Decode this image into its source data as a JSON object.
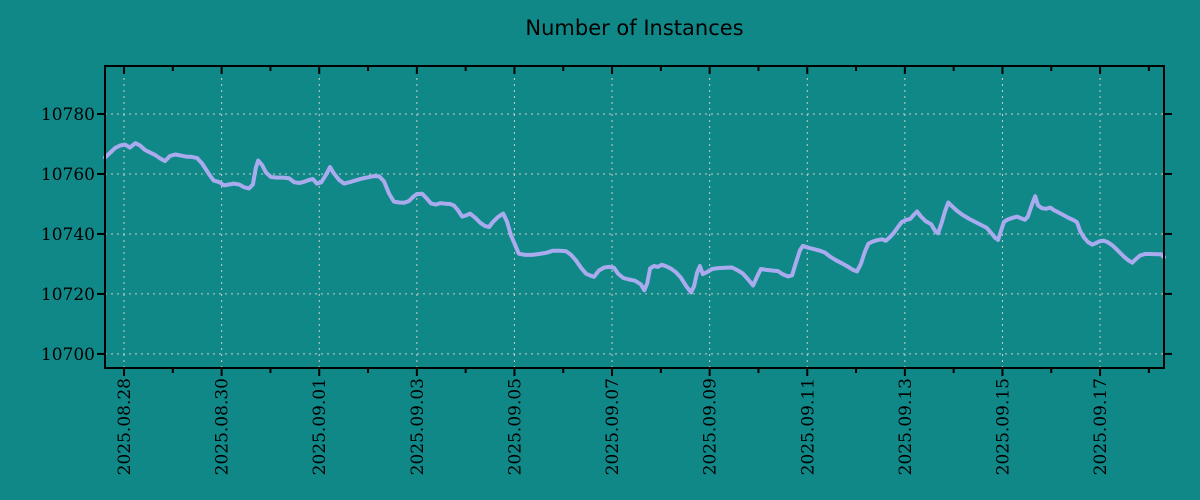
{
  "colors": {
    "background": "#108888",
    "line": "#aaaaee",
    "grid": "#cccccc",
    "axis": "#000000",
    "text": "#000000"
  },
  "chart_data": {
    "type": "line",
    "title": "Number of Instances",
    "xlabel": "",
    "ylabel": "",
    "grid": "dashed",
    "legend": "none",
    "x_tick_labels": [
      "2025.08.28",
      "2025.08.30",
      "2025.09.01",
      "2025.09.03",
      "2025.09.05",
      "2025.09.07",
      "2025.09.09",
      "2025.09.11",
      "2025.09.13",
      "2025.09.15",
      "2025.09.17"
    ],
    "x_tick_days": [
      0,
      2,
      4,
      6,
      8,
      10,
      12,
      14,
      16,
      18,
      20
    ],
    "x_minor_tick_days": [
      1,
      3,
      5,
      7,
      9,
      11,
      13,
      15,
      17,
      19,
      21
    ],
    "y_ticks": [
      10700,
      10720,
      10740,
      10760,
      10780
    ],
    "y_tick_labels": [
      "10700",
      "10720",
      "10740",
      "10760",
      "10780"
    ],
    "xlim_days": [
      -0.39,
      21.31
    ],
    "ylim": [
      10695.3,
      10796.0
    ],
    "x_days": [
      -0.39,
      -0.29,
      -0.18,
      -0.08,
      0.02,
      0.12,
      0.23,
      0.33,
      0.43,
      0.53,
      0.64,
      0.74,
      0.84,
      0.94,
      1.05,
      1.15,
      1.27,
      1.39,
      1.5,
      1.6,
      1.68,
      1.76,
      1.84,
      1.95,
      2.05,
      2.15,
      2.25,
      2.36,
      2.46,
      2.56,
      2.64,
      2.7,
      2.75,
      2.83,
      2.91,
      3.01,
      3.14,
      3.26,
      3.38,
      3.48,
      3.59,
      3.69,
      3.79,
      3.87,
      3.95,
      4.04,
      4.14,
      4.22,
      4.3,
      4.41,
      4.51,
      4.63,
      4.75,
      4.88,
      5.0,
      5.12,
      5.23,
      5.33,
      5.43,
      5.53,
      5.64,
      5.74,
      5.84,
      5.92,
      6.0,
      6.11,
      6.21,
      6.29,
      6.39,
      6.48,
      6.58,
      6.68,
      6.76,
      6.84,
      6.93,
      7.01,
      7.09,
      7.19,
      7.3,
      7.4,
      7.48,
      7.56,
      7.66,
      7.77,
      7.85,
      7.93,
      8.01,
      8.09,
      8.22,
      8.36,
      8.5,
      8.65,
      8.79,
      8.93,
      9.06,
      9.16,
      9.26,
      9.37,
      9.47,
      9.57,
      9.63,
      9.73,
      9.84,
      9.94,
      10.04,
      10.12,
      10.23,
      10.35,
      10.47,
      10.59,
      10.66,
      10.72,
      10.78,
      10.86,
      10.94,
      11.02,
      11.11,
      11.21,
      11.31,
      11.41,
      11.52,
      11.62,
      11.68,
      11.74,
      11.8,
      11.86,
      11.95,
      12.05,
      12.17,
      12.32,
      12.46,
      12.58,
      12.68,
      12.79,
      12.89,
      12.97,
      13.05,
      13.16,
      13.28,
      13.4,
      13.5,
      13.61,
      13.69,
      13.77,
      13.85,
      13.91,
      14.02,
      14.14,
      14.26,
      14.36,
      14.47,
      14.59,
      14.71,
      14.84,
      14.94,
      15.02,
      15.1,
      15.18,
      15.25,
      15.33,
      15.43,
      15.53,
      15.61,
      15.7,
      15.78,
      15.86,
      15.94,
      16.02,
      16.11,
      16.19,
      16.25,
      16.33,
      16.43,
      16.54,
      16.62,
      16.68,
      16.76,
      16.82,
      16.89,
      16.97,
      17.07,
      17.19,
      17.32,
      17.44,
      17.56,
      17.68,
      17.77,
      17.85,
      17.91,
      17.97,
      18.03,
      18.11,
      18.22,
      18.3,
      18.38,
      18.46,
      18.52,
      18.61,
      18.67,
      18.73,
      18.81,
      18.89,
      18.98,
      19.06,
      19.16,
      19.26,
      19.36,
      19.47,
      19.53,
      19.59,
      19.67,
      19.75,
      19.84,
      19.92,
      20.0,
      20.08,
      20.16,
      20.25,
      20.33,
      20.41,
      20.49,
      20.57,
      20.66,
      20.74,
      20.82,
      20.92,
      21.04,
      21.17,
      21.25,
      21.31
    ],
    "values": [
      10765.5,
      10767,
      10768.7,
      10769.5,
      10769.8,
      10768.8,
      10770.3,
      10769.5,
      10768,
      10767.2,
      10766.3,
      10765.2,
      10764.3,
      10766,
      10766.5,
      10766.2,
      10765.8,
      10765.7,
      10765.3,
      10763.5,
      10761.5,
      10759.5,
      10757.8,
      10757.3,
      10756.2,
      10756.5,
      10756.8,
      10756.5,
      10755.6,
      10755.2,
      10756.5,
      10762,
      10764.5,
      10763,
      10760.5,
      10759,
      10758.8,
      10758.8,
      10758.6,
      10757.3,
      10757,
      10757.4,
      10758,
      10758.3,
      10756.8,
      10757.2,
      10759.8,
      10762.3,
      10760.2,
      10758,
      10756.8,
      10757.3,
      10757.9,
      10758.5,
      10758.9,
      10759.3,
      10759.2,
      10757.5,
      10753.5,
      10750.8,
      10750.5,
      10750.4,
      10751,
      10752.3,
      10753.3,
      10753.4,
      10751.7,
      10750.2,
      10749.8,
      10750.3,
      10750.1,
      10750,
      10749.5,
      10748,
      10745.8,
      10746.2,
      10746.8,
      10745.5,
      10743.7,
      10742.6,
      10742.3,
      10744,
      10745.6,
      10746.8,
      10744,
      10739.5,
      10736.5,
      10733.4,
      10733,
      10733,
      10733.3,
      10733.7,
      10734.4,
      10734.4,
      10734.2,
      10733,
      10731.2,
      10728.6,
      10726.7,
      10726,
      10725.7,
      10727.8,
      10728.8,
      10729,
      10728.7,
      10726.8,
      10725.3,
      10724.8,
      10724.4,
      10723.2,
      10721.2,
      10723.5,
      10728.5,
      10729.3,
      10729,
      10729.7,
      10729.2,
      10728.4,
      10727.2,
      10725.4,
      10722.6,
      10720.5,
      10722.5,
      10727,
      10729.3,
      10726.6,
      10727.3,
      10728.3,
      10728.6,
      10728.7,
      10728.8,
      10727.8,
      10726.8,
      10724.8,
      10722.8,
      10725.7,
      10728.3,
      10728,
      10727.8,
      10727.6,
      10726.5,
      10725.8,
      10726.2,
      10730.5,
      10734.5,
      10736,
      10735.4,
      10734.9,
      10734.4,
      10733.8,
      10732.4,
      10731.2,
      10730.2,
      10729,
      10728,
      10727.5,
      10730,
      10734,
      10736.7,
      10737.4,
      10737.9,
      10738.2,
      10737.7,
      10739,
      10740.5,
      10742.3,
      10744,
      10744.6,
      10745,
      10746.5,
      10747.5,
      10745.8,
      10744.2,
      10743.2,
      10741,
      10740.2,
      10744,
      10747.5,
      10750.5,
      10749.2,
      10747.7,
      10746.3,
      10745,
      10744,
      10743,
      10742,
      10740.3,
      10738.7,
      10738,
      10741,
      10744,
      10744.8,
      10745.4,
      10745.8,
      10745.2,
      10744.7,
      10745.8,
      10750,
      10752.6,
      10749.5,
      10748.6,
      10748.4,
      10748.8,
      10747.9,
      10747.1,
      10746.2,
      10745.3,
      10744.5,
      10743.8,
      10741,
      10738.8,
      10737.3,
      10736.4,
      10737,
      10737.6,
      10737.7,
      10737.2,
      10736.2,
      10735,
      10733.7,
      10732.4,
      10731.3,
      10730.4,
      10731.7,
      10732.8,
      10733.3,
      10733.3,
      10733.2,
      10733.2,
      10732.2
    ],
    "layout": {
      "plot_left": 105,
      "plot_top": 66,
      "plot_right": 1164,
      "plot_bottom": 368,
      "major_tick_len": 8,
      "minor_tick_len": 5
    }
  }
}
